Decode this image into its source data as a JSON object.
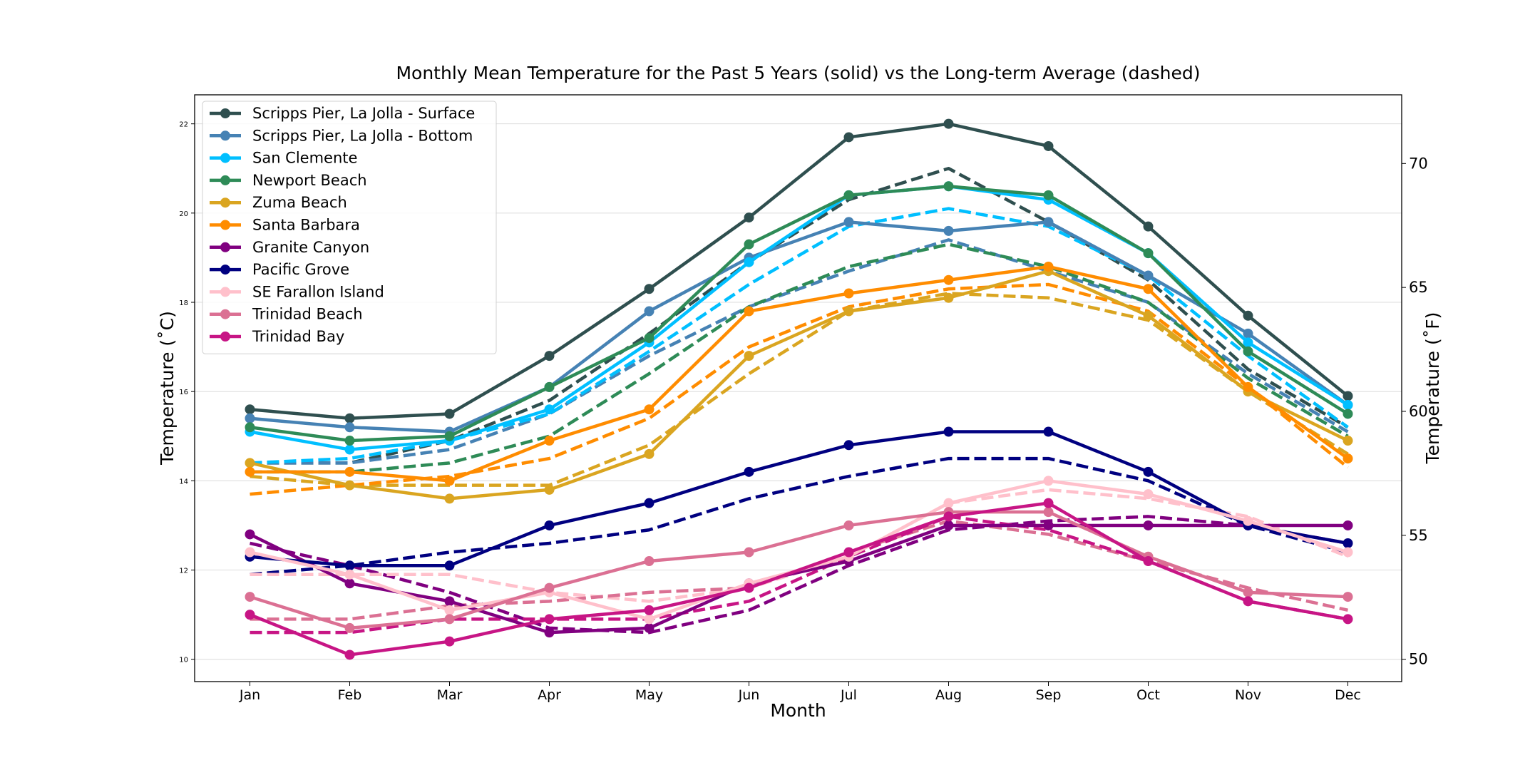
{
  "chart_data": {
    "type": "line",
    "title": "Monthly Mean Temperature for the Past 5 Years (solid) vs the Long-term Average (dashed)",
    "xlabel": "Month",
    "ylabel": "Temperature (˚C)",
    "ylabel_right": "Temperature (˚F)",
    "categories": [
      "Jan",
      "Feb",
      "Mar",
      "Apr",
      "May",
      "Jun",
      "Jul",
      "Aug",
      "Sep",
      "Oct",
      "Nov",
      "Dec"
    ],
    "ylim": [
      9.5,
      22.65
    ],
    "ylim_right": [
      49.1,
      72.77
    ],
    "yticks": [
      10,
      12,
      14,
      16,
      18,
      20,
      22
    ],
    "yticks_right": [
      50,
      55,
      60,
      65,
      70
    ],
    "grid": "horizontal",
    "legend_position": "top-left",
    "series": [
      {
        "name": "Scripps Pier, La Jolla - Surface",
        "color": "#2f4f4f",
        "values": [
          15.6,
          15.4,
          15.5,
          16.8,
          18.3,
          19.9,
          21.7,
          22.0,
          21.5,
          19.7,
          17.7,
          15.9
        ],
        "average": [
          14.4,
          14.4,
          14.9,
          15.8,
          17.3,
          18.9,
          20.3,
          21.0,
          19.8,
          18.5,
          16.5,
          15.2
        ]
      },
      {
        "name": "Scripps Pier, La Jolla - Bottom",
        "color": "#4682b4",
        "values": [
          15.4,
          15.2,
          15.1,
          16.1,
          17.8,
          19.0,
          19.8,
          19.6,
          19.8,
          18.6,
          17.3,
          15.7
        ],
        "average": [
          14.4,
          14.4,
          14.7,
          15.5,
          16.8,
          17.9,
          18.7,
          19.4,
          18.7,
          18.0,
          16.4,
          15.1
        ]
      },
      {
        "name": "San Clemente",
        "color": "#00bfff",
        "values": [
          15.1,
          14.7,
          14.9,
          15.6,
          17.1,
          18.9,
          20.4,
          20.6,
          20.3,
          19.1,
          17.1,
          15.7
        ],
        "average": [
          14.4,
          14.5,
          14.9,
          15.5,
          16.9,
          18.4,
          19.7,
          20.1,
          19.7,
          18.6,
          16.8,
          15.2
        ]
      },
      {
        "name": "Newport Beach",
        "color": "#2e8b57",
        "values": [
          15.2,
          14.9,
          15.0,
          16.1,
          17.2,
          19.3,
          20.4,
          20.6,
          20.4,
          19.1,
          16.9,
          15.5
        ],
        "average": [
          14.2,
          14.2,
          14.4,
          15.0,
          16.4,
          17.9,
          18.8,
          19.3,
          18.8,
          18.0,
          16.3,
          15.0
        ]
      },
      {
        "name": "Zuma Beach",
        "color": "#daa520",
        "values": [
          14.4,
          13.9,
          13.6,
          13.8,
          14.6,
          16.8,
          17.8,
          18.1,
          18.7,
          17.7,
          16.0,
          14.9
        ],
        "average": [
          14.1,
          13.9,
          13.9,
          13.9,
          14.8,
          16.4,
          17.8,
          18.2,
          18.1,
          17.6,
          16.0,
          14.6
        ]
      },
      {
        "name": "Santa Barbara",
        "color": "#ff8c00",
        "values": [
          14.2,
          14.2,
          14.0,
          14.9,
          15.6,
          17.8,
          18.2,
          18.5,
          18.8,
          18.3,
          16.1,
          14.5
        ],
        "average": [
          13.7,
          13.9,
          14.1,
          14.5,
          15.4,
          17.0,
          17.9,
          18.3,
          18.4,
          17.8,
          16.1,
          14.3
        ]
      },
      {
        "name": "Granite Canyon",
        "color": "#800080",
        "values": [
          12.8,
          11.7,
          11.3,
          10.6,
          10.7,
          11.7,
          12.2,
          13.0,
          13.0,
          13.0,
          13.0,
          13.0
        ],
        "average": [
          12.6,
          12.1,
          11.5,
          10.7,
          10.6,
          11.1,
          12.1,
          12.9,
          13.1,
          13.2,
          13.0,
          12.6
        ]
      },
      {
        "name": "Pacific Grove",
        "color": "#000080",
        "values": [
          12.3,
          12.1,
          12.1,
          13.0,
          13.5,
          14.2,
          14.8,
          15.1,
          15.1,
          14.2,
          13.0,
          12.6
        ],
        "average": [
          11.9,
          12.1,
          12.4,
          12.6,
          12.9,
          13.6,
          14.1,
          14.5,
          14.5,
          14.0,
          13.0,
          12.4
        ]
      },
      {
        "name": "SE Farallon Island",
        "color": "#ffc0cb",
        "values": [
          12.4,
          11.9,
          11.1,
          11.5,
          10.9,
          11.7,
          12.3,
          13.5,
          14.0,
          13.7,
          13.1,
          12.4
        ],
        "average": [
          11.9,
          11.9,
          11.9,
          11.5,
          11.3,
          11.6,
          12.3,
          13.5,
          13.8,
          13.6,
          13.2,
          12.3
        ]
      },
      {
        "name": "Trinidad Beach",
        "color": "#db7093",
        "values": [
          11.4,
          10.7,
          10.9,
          11.6,
          12.2,
          12.4,
          13.0,
          13.3,
          13.3,
          12.3,
          11.5,
          11.4
        ],
        "average": [
          10.9,
          10.9,
          11.2,
          11.3,
          11.5,
          11.6,
          12.4,
          13.1,
          12.8,
          12.2,
          11.6,
          11.1
        ]
      },
      {
        "name": "Trinidad Bay",
        "color": "#c71585",
        "values": [
          11.0,
          10.1,
          10.4,
          10.9,
          11.1,
          11.6,
          12.4,
          13.2,
          13.5,
          12.2,
          11.3,
          10.9
        ],
        "average": [
          10.6,
          10.6,
          10.9,
          10.9,
          10.9,
          11.3,
          12.3,
          13.2,
          12.9,
          12.2,
          11.3,
          10.9
        ]
      }
    ]
  }
}
